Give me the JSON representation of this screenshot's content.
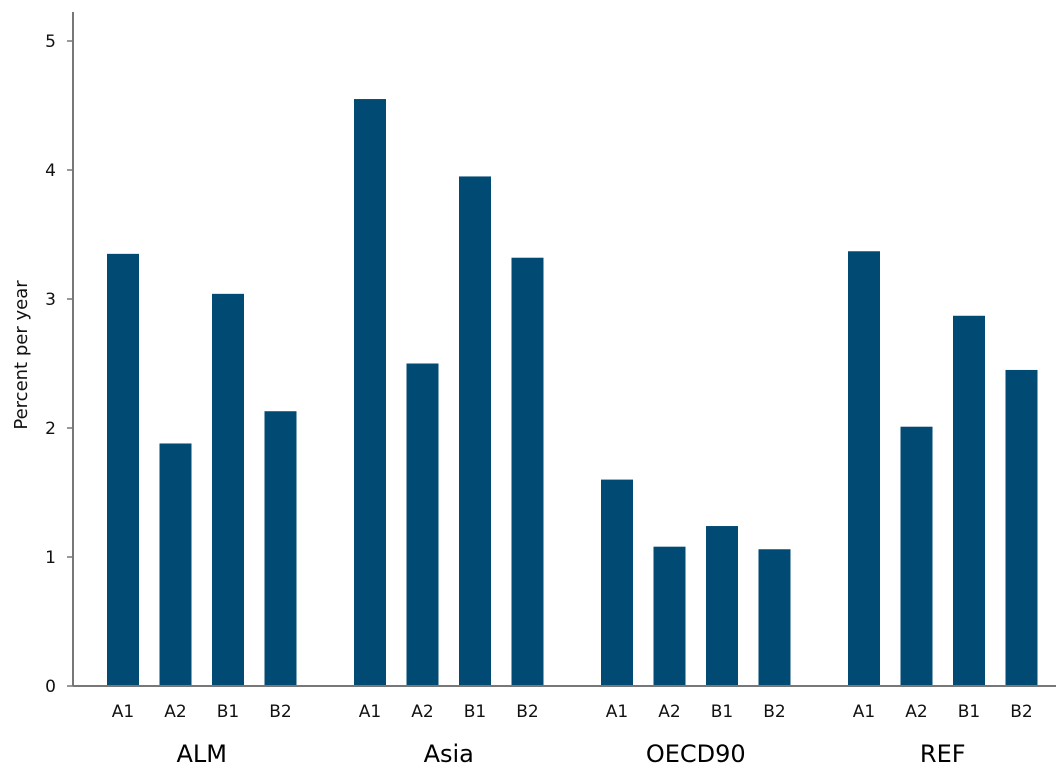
{
  "chart_data": {
    "type": "bar",
    "groups": [
      "ALM",
      "Asia",
      "OECD90",
      "REF"
    ],
    "categories": [
      "A1",
      "A2",
      "B1",
      "B2"
    ],
    "series": [
      {
        "group": "ALM",
        "values": [
          3.35,
          1.88,
          3.04,
          2.13
        ]
      },
      {
        "group": "Asia",
        "values": [
          4.55,
          2.5,
          3.95,
          3.32
        ]
      },
      {
        "group": "OECD90",
        "values": [
          1.6,
          1.08,
          1.24,
          1.06
        ]
      },
      {
        "group": "REF",
        "values": [
          3.37,
          2.01,
          2.87,
          2.45
        ]
      }
    ],
    "title": "",
    "xlabel": "",
    "ylabel": "Percent per year",
    "ylim": [
      0,
      5
    ],
    "yticks": [
      0,
      1,
      2,
      3,
      4,
      5
    ],
    "grid": false,
    "bar_color": "#004a74"
  }
}
